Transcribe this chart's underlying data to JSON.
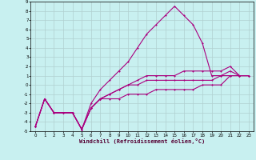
{
  "xlabel": "Windchill (Refroidissement éolien,°C)",
  "background_color": "#c8f0f0",
  "grid_color": "#b0d0d0",
  "line_color": "#aa007f",
  "xlim": [
    -0.5,
    23.5
  ],
  "ylim": [
    -5,
    9
  ],
  "xticks": [
    0,
    1,
    2,
    3,
    4,
    5,
    6,
    7,
    8,
    9,
    10,
    11,
    12,
    13,
    14,
    15,
    16,
    17,
    18,
    19,
    20,
    21,
    22,
    23
  ],
  "yticks": [
    -5,
    -4,
    -3,
    -2,
    -1,
    0,
    1,
    2,
    3,
    4,
    5,
    6,
    7,
    8,
    9
  ],
  "line1_x": [
    0,
    1,
    2,
    3,
    4,
    5,
    6,
    7,
    8,
    9,
    10,
    11,
    12,
    13,
    14,
    15,
    16,
    17,
    18,
    19,
    20,
    21,
    22,
    23
  ],
  "line1_y": [
    -4.5,
    -1.5,
    -3,
    -3,
    -3,
    -4.8,
    -2.5,
    -1.5,
    -1.5,
    -1.5,
    -1,
    -1,
    -1,
    -0.5,
    -0.5,
    -0.5,
    -0.5,
    -0.5,
    0,
    0,
    0,
    1,
    1,
    1
  ],
  "line2_x": [
    0,
    1,
    2,
    3,
    4,
    5,
    6,
    7,
    8,
    9,
    10,
    11,
    12,
    13,
    14,
    15,
    16,
    17,
    18,
    19,
    20,
    21,
    22,
    23
  ],
  "line2_y": [
    -4.5,
    -1.5,
    -3,
    -3,
    -3,
    -4.8,
    -2,
    -0.5,
    0.5,
    1.5,
    2.5,
    4,
    5.5,
    6.5,
    7.5,
    8.5,
    7.5,
    6.5,
    4.5,
    1,
    1,
    1.5,
    1,
    1
  ],
  "line3_x": [
    0,
    1,
    2,
    3,
    4,
    5,
    6,
    7,
    8,
    9,
    10,
    11,
    12,
    13,
    14,
    15,
    16,
    17,
    18,
    19,
    20,
    21,
    22,
    23
  ],
  "line3_y": [
    -4.5,
    -1.5,
    -3,
    -3,
    -3,
    -4.8,
    -2.5,
    -1.5,
    -1,
    -0.5,
    0,
    0.5,
    1,
    1,
    1,
    1,
    1.5,
    1.5,
    1.5,
    1.5,
    1.5,
    2,
    1,
    1
  ],
  "line4_x": [
    0,
    1,
    2,
    3,
    4,
    5,
    6,
    7,
    8,
    9,
    10,
    11,
    12,
    13,
    14,
    15,
    16,
    17,
    18,
    19,
    20,
    21,
    22,
    23
  ],
  "line4_y": [
    -4.5,
    -1.5,
    -3,
    -3,
    -3,
    -4.8,
    -2.5,
    -1.5,
    -1,
    -0.5,
    0,
    0,
    0.5,
    0.5,
    0.5,
    0.5,
    0.5,
    0.5,
    0.5,
    0.5,
    1,
    1,
    1,
    1
  ]
}
